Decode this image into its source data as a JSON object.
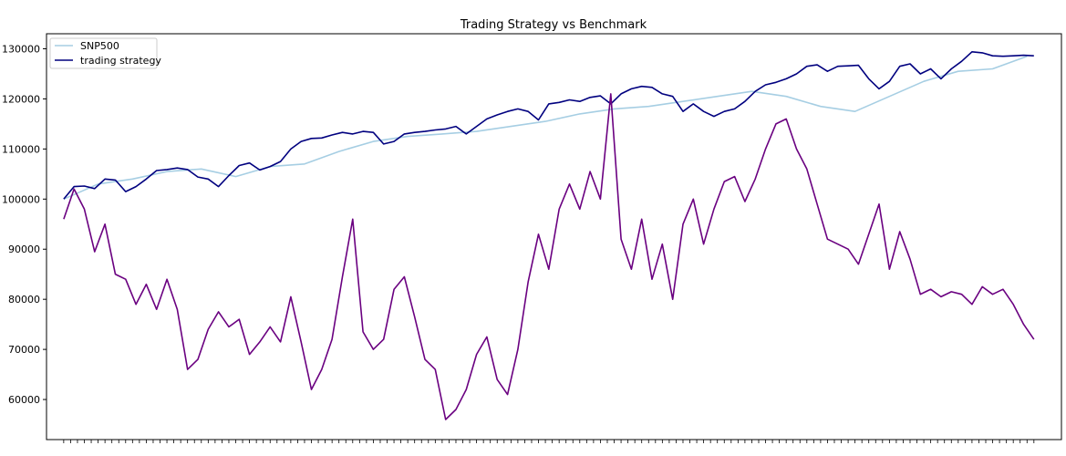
{
  "chart_data": {
    "type": "line",
    "title": "Trading Strategy vs Benchmark",
    "xlabel": "",
    "ylabel": "",
    "ylim": [
      52000,
      133000
    ],
    "yticks": [
      60000,
      70000,
      80000,
      90000,
      100000,
      110000,
      120000,
      130000
    ],
    "ytick_labels": [
      "60000",
      "70000",
      "80000",
      "90000",
      "100000",
      "110000",
      "120000",
      "130000"
    ],
    "grid": false,
    "legend_position": "top-left",
    "series": [
      {
        "name": "SNP500",
        "color": "#a6cee3",
        "x": [
          0,
          10,
          20,
          30,
          40,
          50,
          60,
          70,
          80,
          90,
          100,
          110,
          120,
          130,
          140,
          150,
          160,
          170,
          180,
          190,
          200,
          210,
          220,
          230,
          240,
          250,
          260,
          270,
          280
        ],
        "values": [
          100000,
          103000,
          104000,
          105500,
          106000,
          104500,
          106500,
          107000,
          109500,
          111500,
          112500,
          113000,
          113500,
          114500,
          115500,
          117000,
          118000,
          118500,
          119500,
          120500,
          121500,
          120500,
          118500,
          117500,
          120500,
          123500,
          125500,
          126000,
          128500
        ]
      },
      {
        "name": "trading strategy",
        "color": "#00007f",
        "x": [
          0,
          3,
          6,
          9,
          12,
          15,
          18,
          21,
          24,
          27,
          30,
          33,
          36,
          39,
          42,
          45,
          48,
          51,
          54,
          57,
          60,
          63,
          66,
          69,
          72,
          75,
          78,
          81,
          84,
          87,
          90,
          93,
          96,
          99,
          102,
          105,
          108,
          111,
          114,
          117,
          120,
          123,
          126,
          129,
          132,
          135,
          138,
          141,
          144,
          147,
          150,
          153,
          156,
          159,
          162,
          165,
          168,
          171,
          174,
          177,
          180,
          183,
          186,
          189,
          192,
          195,
          198,
          201,
          204,
          207,
          210,
          213,
          216,
          219,
          222,
          225,
          228,
          231,
          234,
          237,
          240,
          243,
          246,
          249,
          252,
          255,
          258,
          261,
          264,
          267,
          270,
          273,
          276,
          279,
          282
        ],
        "values": [
          100000,
          102500,
          102600,
          102100,
          104000,
          103800,
          101500,
          102500,
          104000,
          105700,
          105900,
          106200,
          105900,
          104400,
          104000,
          102500,
          104700,
          106700,
          107200,
          105800,
          106500,
          107500,
          110000,
          111500,
          112100,
          112200,
          112800,
          113300,
          113000,
          113500,
          113300,
          111000,
          111500,
          113000,
          113300,
          113500,
          113800,
          114000,
          114500,
          113000,
          114500,
          116000,
          116800,
          117500,
          118000,
          117500,
          115800,
          119000,
          119300,
          119800,
          119500,
          120300,
          120600,
          119000,
          121000,
          122000,
          122500,
          122300,
          121000,
          120500,
          117500,
          119000,
          117500,
          116500,
          117500,
          118000,
          119500,
          121500,
          122800,
          123300,
          124000,
          125000,
          126500,
          126800,
          125500,
          126500,
          126600,
          126700,
          124000,
          122000,
          123500,
          126500,
          127000,
          125000,
          126000,
          124000,
          126000,
          127500,
          129400,
          129200,
          128600,
          128500,
          128600,
          128700,
          128600
        ]
      },
      {
        "name": "",
        "color": "#6a0080",
        "x": [
          0,
          3,
          6,
          9,
          12,
          15,
          18,
          21,
          24,
          27,
          30,
          33,
          36,
          39,
          42,
          45,
          48,
          51,
          54,
          57,
          60,
          63,
          66,
          69,
          72,
          75,
          78,
          81,
          84,
          87,
          90,
          93,
          96,
          99,
          102,
          105,
          108,
          111,
          114,
          117,
          120,
          123,
          126,
          129,
          132,
          135,
          138,
          141,
          144,
          147,
          150,
          153,
          156,
          159,
          162,
          165,
          168,
          171,
          174,
          177,
          180,
          183,
          186,
          189,
          192,
          195,
          198,
          201,
          204,
          207,
          210,
          213,
          216,
          219,
          222,
          225,
          228,
          231,
          234,
          237,
          240,
          243,
          246,
          249,
          252,
          255,
          258,
          261,
          264,
          267,
          270,
          273,
          276,
          279,
          282
        ],
        "values": [
          96000,
          102000,
          98000,
          89500,
          95000,
          85000,
          84000,
          79000,
          83000,
          78000,
          84000,
          78000,
          66000,
          68000,
          74000,
          77500,
          74500,
          76000,
          69000,
          71500,
          74500,
          71500,
          80500,
          71500,
          62000,
          66000,
          72000,
          84500,
          96000,
          73500,
          70000,
          72000,
          82000,
          84500,
          76500,
          68000,
          66000,
          56000,
          58000,
          62000,
          69000,
          72500,
          64000,
          61000,
          70000,
          83500,
          93000,
          86000,
          98000,
          103000,
          98000,
          105500,
          100000,
          121000,
          92000,
          86000,
          96000,
          84000,
          91000,
          80000,
          95000,
          100000,
          91000,
          98000,
          103500,
          104500,
          99500,
          104000,
          110000,
          115000,
          116000,
          110000,
          106000,
          99000,
          92000,
          91000,
          90000,
          87000,
          93000,
          99000,
          86000,
          93500,
          88000,
          81000,
          82000,
          80500,
          81500,
          81000,
          79000,
          82500,
          81000,
          82000,
          79000,
          75000,
          72000
        ]
      }
    ]
  }
}
